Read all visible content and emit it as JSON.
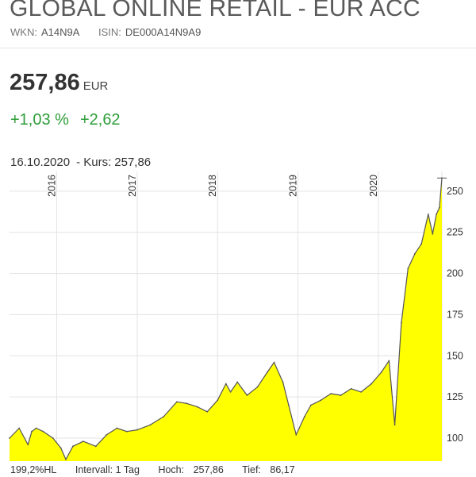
{
  "header": {
    "title": "GLOBAL ONLINE RETAIL - EUR ACC",
    "wkn_label": "WKN:",
    "wkn": "A14N9A",
    "isin_label": "ISIN:",
    "isin": "DE000A14N9A9"
  },
  "quote": {
    "price": "257,86",
    "currency": "EUR",
    "change_pct": "+1,03 %",
    "change_abs": "+2,62",
    "date": "16.10.2020",
    "kurs_label": "- Kurs:",
    "kurs": "257,86"
  },
  "footer": {
    "hl": "199,2%HL",
    "interval_label": "Intervall:",
    "interval": "1 Tag",
    "high_label": "Hoch:",
    "high": "257,86",
    "low_label": "Tief:",
    "low": "86,17"
  },
  "colors": {
    "fill": "#ffff00",
    "line": "#555555",
    "grid": "#e3e3e3",
    "positive": "#2e9e3a"
  },
  "chart_data": {
    "type": "area",
    "x_tick_labels": [
      "2016",
      "2017",
      "2018",
      "2019",
      "2020"
    ],
    "x_tick_dates": [
      "2016-01-01",
      "2017-01-01",
      "2018-01-01",
      "2019-01-01",
      "2020-01-01"
    ],
    "y_tick_labels": [
      "100",
      "125",
      "150",
      "175",
      "200",
      "225",
      "250"
    ],
    "y_ticks": [
      100,
      125,
      150,
      175,
      200,
      225,
      250
    ],
    "ylim": [
      86,
      262
    ],
    "xlim": [
      "2015-06-01",
      "2020-10-16"
    ],
    "grid": true,
    "series": [
      {
        "dates": [
          "2015-06-01",
          "2015-07-15",
          "2015-08-24",
          "2015-09-10",
          "2015-09-30",
          "2015-11-01",
          "2015-12-15",
          "2016-01-20",
          "2016-02-12",
          "2016-03-15",
          "2016-05-01",
          "2016-06-27",
          "2016-08-15",
          "2016-10-01",
          "2016-11-15",
          "2017-01-01",
          "2017-03-01",
          "2017-05-01",
          "2017-06-30",
          "2017-08-15",
          "2017-10-01",
          "2017-11-15",
          "2018-01-01",
          "2018-02-08",
          "2018-03-01",
          "2018-04-01",
          "2018-05-15",
          "2018-07-01",
          "2018-08-15",
          "2018-09-15",
          "2018-10-25",
          "2018-11-20",
          "2018-12-24",
          "2019-01-31",
          "2019-03-01",
          "2019-04-15",
          "2019-05-31",
          "2019-07-15",
          "2019-08-31",
          "2019-10-15",
          "2019-12-01",
          "2020-01-15",
          "2020-02-19",
          "2020-03-16",
          "2020-04-15",
          "2020-05-15",
          "2020-06-15",
          "2020-07-15",
          "2020-08-15",
          "2020-09-04",
          "2020-09-21",
          "2020-10-05",
          "2020-10-16"
        ],
        "values": [
          100,
          106,
          96,
          104,
          106,
          104,
          100,
          94,
          87,
          95,
          98,
          95,
          102,
          106,
          104,
          105,
          108,
          113,
          122,
          121,
          119,
          116,
          123,
          133,
          128,
          134,
          126,
          131,
          140,
          146,
          134,
          120,
          102,
          113,
          120,
          123,
          127,
          126,
          130,
          128,
          133,
          140,
          147,
          108,
          170,
          203,
          212,
          218,
          236,
          224,
          236,
          240,
          258
        ]
      }
    ]
  }
}
